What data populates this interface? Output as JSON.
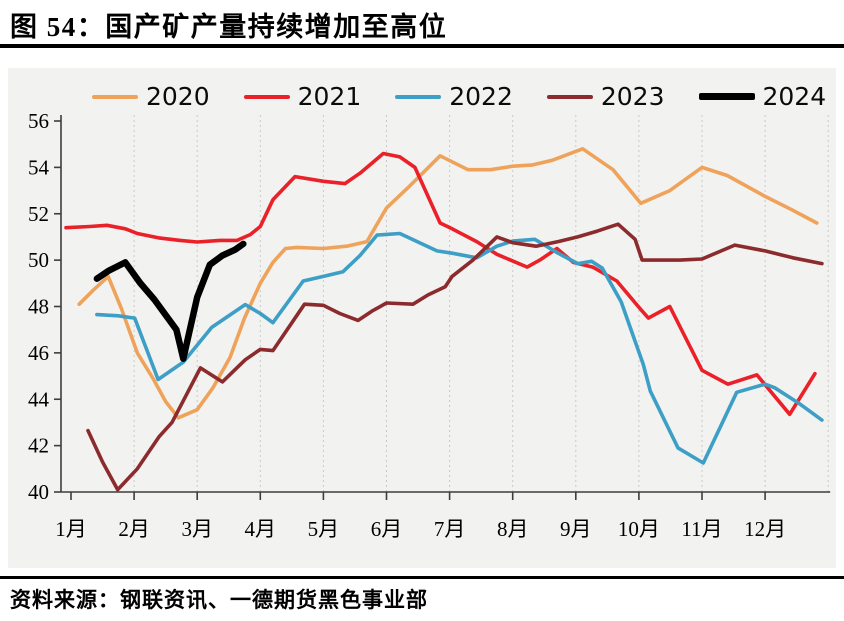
{
  "title": "图 54：国产矿产量持续增加至高位",
  "footer": {
    "source_label": "资料来源：钢联资讯、一德期货黑色事业部"
  },
  "colors": {
    "panel_bg": "#f2f2f1",
    "gridline": "#c9c9c9",
    "axis": "#3d3d3d",
    "y2020": "#efa35a",
    "y2021": "#ea2128",
    "y2022": "#3d9fc5",
    "y2023": "#8c2b2d",
    "y2024": "#000000"
  },
  "chart_data": {
    "type": "line",
    "title": "国产矿产量持续增加至高位",
    "xlabel": "",
    "ylabel": "",
    "x_axis": {
      "tick_labels": [
        "1月",
        "2月",
        "3月",
        "4月",
        "5月",
        "6月",
        "7月",
        "8月",
        "9月",
        "10月",
        "11月",
        "12月"
      ],
      "tick_months": [
        1,
        2,
        3,
        4,
        5,
        6,
        7,
        8,
        9,
        10,
        11,
        12
      ],
      "grid_months": [
        2,
        3,
        4,
        5,
        6,
        7,
        8,
        9,
        10,
        11,
        12,
        13
      ],
      "grid": "dotted-vertical"
    },
    "y_axis": {
      "ticks": [
        40,
        42,
        44,
        46,
        48,
        50,
        52,
        54,
        56
      ],
      "ylim": [
        40,
        56
      ]
    },
    "legend_position": "top",
    "series": [
      {
        "name": "2020",
        "color": "#efa35a",
        "width": 3.6,
        "points": [
          [
            1.13,
            48.1
          ],
          [
            1.35,
            48.7
          ],
          [
            1.59,
            49.3
          ],
          [
            1.8,
            47.9
          ],
          [
            2.05,
            46.0
          ],
          [
            2.3,
            44.9
          ],
          [
            2.5,
            43.9
          ],
          [
            2.7,
            43.2
          ],
          [
            3.0,
            43.55
          ],
          [
            3.25,
            44.5
          ],
          [
            3.52,
            45.8
          ],
          [
            3.75,
            47.5
          ],
          [
            4.0,
            49.0
          ],
          [
            4.2,
            49.9
          ],
          [
            4.4,
            50.5
          ],
          [
            4.58,
            50.55
          ],
          [
            5.0,
            50.5
          ],
          [
            5.37,
            50.6
          ],
          [
            5.69,
            50.8
          ],
          [
            6.0,
            52.25
          ],
          [
            6.37,
            53.2
          ],
          [
            6.74,
            54.2
          ],
          [
            6.85,
            54.5
          ],
          [
            7.29,
            53.9
          ],
          [
            7.65,
            53.9
          ],
          [
            8.0,
            54.05
          ],
          [
            8.3,
            54.1
          ],
          [
            8.62,
            54.3
          ],
          [
            9.11,
            54.8
          ],
          [
            9.59,
            53.9
          ],
          [
            10.03,
            52.45
          ],
          [
            10.49,
            53.0
          ],
          [
            11.0,
            54.0
          ],
          [
            11.4,
            53.65
          ],
          [
            12.0,
            52.75
          ],
          [
            12.44,
            52.15
          ],
          [
            12.82,
            51.6
          ]
        ]
      },
      {
        "name": "2021",
        "color": "#ea2128",
        "width": 3.6,
        "points": [
          [
            0.92,
            51.4
          ],
          [
            1.3,
            51.45
          ],
          [
            1.57,
            51.5
          ],
          [
            1.86,
            51.35
          ],
          [
            2.05,
            51.15
          ],
          [
            2.41,
            50.95
          ],
          [
            2.73,
            50.85
          ],
          [
            3.0,
            50.78
          ],
          [
            3.36,
            50.85
          ],
          [
            3.63,
            50.85
          ],
          [
            3.84,
            51.1
          ],
          [
            4.0,
            51.45
          ],
          [
            4.2,
            52.6
          ],
          [
            4.55,
            53.6
          ],
          [
            5.0,
            53.4
          ],
          [
            5.34,
            53.3
          ],
          [
            5.58,
            53.75
          ],
          [
            5.95,
            54.6
          ],
          [
            6.21,
            54.45
          ],
          [
            6.45,
            54.0
          ],
          [
            6.85,
            51.6
          ],
          [
            7.04,
            51.35
          ],
          [
            7.43,
            50.8
          ],
          [
            7.75,
            50.25
          ],
          [
            8.23,
            49.7
          ],
          [
            8.43,
            50.0
          ],
          [
            8.7,
            50.5
          ],
          [
            8.96,
            49.9
          ],
          [
            9.27,
            49.7
          ],
          [
            9.65,
            49.1
          ],
          [
            10.02,
            47.9
          ],
          [
            10.15,
            47.5
          ],
          [
            10.49,
            48.0
          ],
          [
            11.0,
            45.25
          ],
          [
            11.41,
            44.65
          ],
          [
            11.87,
            45.05
          ],
          [
            12.39,
            43.35
          ],
          [
            12.79,
            45.1
          ]
        ]
      },
      {
        "name": "2022",
        "color": "#3d9fc5",
        "width": 3.6,
        "points": [
          [
            1.41,
            47.65
          ],
          [
            1.75,
            47.6
          ],
          [
            2.01,
            47.5
          ],
          [
            2.38,
            44.85
          ],
          [
            2.78,
            45.6
          ],
          [
            3.23,
            47.1
          ],
          [
            3.76,
            48.08
          ],
          [
            4.0,
            47.7
          ],
          [
            4.2,
            47.3
          ],
          [
            4.68,
            49.1
          ],
          [
            5.0,
            49.3
          ],
          [
            5.31,
            49.5
          ],
          [
            5.58,
            50.2
          ],
          [
            5.85,
            51.08
          ],
          [
            6.21,
            51.15
          ],
          [
            6.8,
            50.4
          ],
          [
            7.04,
            50.3
          ],
          [
            7.43,
            50.1
          ],
          [
            7.75,
            50.6
          ],
          [
            8.0,
            50.82
          ],
          [
            8.35,
            50.9
          ],
          [
            8.72,
            50.3
          ],
          [
            9.03,
            49.85
          ],
          [
            9.25,
            49.95
          ],
          [
            9.42,
            49.65
          ],
          [
            9.72,
            48.2
          ],
          [
            10.07,
            45.5
          ],
          [
            10.18,
            44.35
          ],
          [
            10.62,
            41.9
          ],
          [
            11.02,
            41.25
          ],
          [
            11.55,
            44.3
          ],
          [
            12.0,
            44.65
          ],
          [
            12.15,
            44.5
          ],
          [
            12.55,
            43.8
          ],
          [
            12.9,
            43.1
          ]
        ]
      },
      {
        "name": "2023",
        "color": "#8c2b2d",
        "width": 3.6,
        "points": [
          [
            1.27,
            42.65
          ],
          [
            1.5,
            41.3
          ],
          [
            1.74,
            40.1
          ],
          [
            2.05,
            41.0
          ],
          [
            2.4,
            42.4
          ],
          [
            2.6,
            43.0
          ],
          [
            2.85,
            44.3
          ],
          [
            3.05,
            45.35
          ],
          [
            3.4,
            44.75
          ],
          [
            3.76,
            45.7
          ],
          [
            4.0,
            46.15
          ],
          [
            4.2,
            46.1
          ],
          [
            4.7,
            48.1
          ],
          [
            5.0,
            48.05
          ],
          [
            5.26,
            47.7
          ],
          [
            5.55,
            47.4
          ],
          [
            5.77,
            47.8
          ],
          [
            6.0,
            48.15
          ],
          [
            6.42,
            48.1
          ],
          [
            6.66,
            48.5
          ],
          [
            6.93,
            48.85
          ],
          [
            7.04,
            49.3
          ],
          [
            7.37,
            50.0
          ],
          [
            7.75,
            51.0
          ],
          [
            8.0,
            50.75
          ],
          [
            8.37,
            50.6
          ],
          [
            8.72,
            50.8
          ],
          [
            9.03,
            51.0
          ],
          [
            9.34,
            51.25
          ],
          [
            9.67,
            51.55
          ],
          [
            9.94,
            50.9
          ],
          [
            10.05,
            50.0
          ],
          [
            10.65,
            50.0
          ],
          [
            11.0,
            50.05
          ],
          [
            11.52,
            50.65
          ],
          [
            12.0,
            50.4
          ],
          [
            12.44,
            50.1
          ],
          [
            12.9,
            49.85
          ]
        ]
      },
      {
        "name": "2024",
        "color": "#000000",
        "width": 6.5,
        "points": [
          [
            1.41,
            49.2
          ],
          [
            1.6,
            49.55
          ],
          [
            1.86,
            49.9
          ],
          [
            2.1,
            49.0
          ],
          [
            2.32,
            48.3
          ],
          [
            2.67,
            47.0
          ],
          [
            2.78,
            45.75
          ],
          [
            3.0,
            48.4
          ],
          [
            3.2,
            49.8
          ],
          [
            3.4,
            50.2
          ],
          [
            3.6,
            50.45
          ],
          [
            3.73,
            50.7
          ]
        ]
      }
    ]
  }
}
